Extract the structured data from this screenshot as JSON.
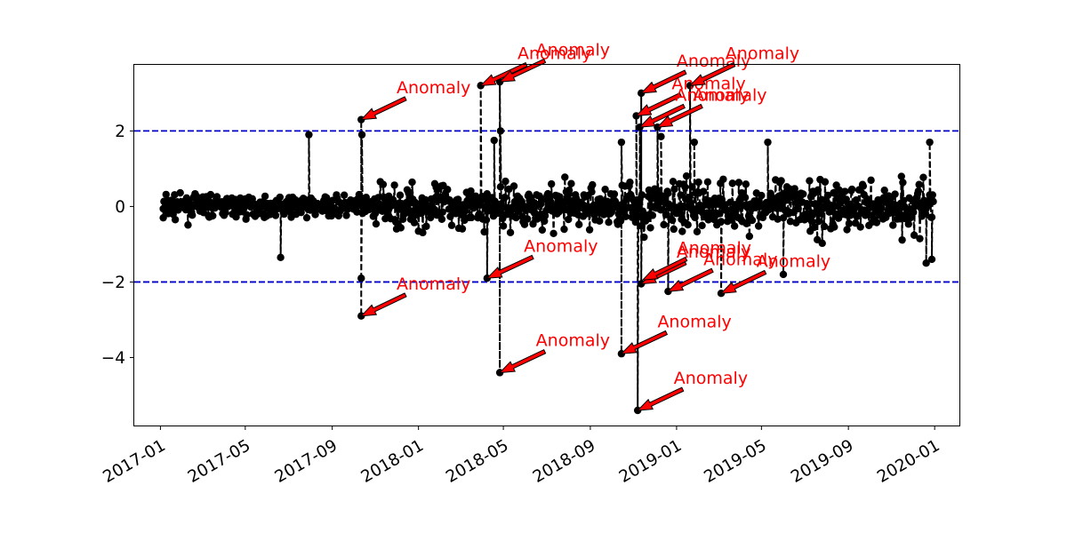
{
  "chart_data": {
    "type": "line",
    "title": "",
    "xlabel": "",
    "ylabel": "",
    "x_axis": {
      "type": "date",
      "range": [
        "2016-11-25",
        "2020-02-05"
      ],
      "tick_dates": [
        "2017-01-01",
        "2017-05-01",
        "2017-09-01",
        "2018-01-01",
        "2018-05-01",
        "2018-09-01",
        "2019-01-01",
        "2019-05-01",
        "2019-09-01",
        "2020-01-01"
      ],
      "tick_labels": [
        "2017-01",
        "2017-05",
        "2017-09",
        "2018-01",
        "2018-05",
        "2018-09",
        "2019-01",
        "2019-05",
        "2019-09",
        "2020-01"
      ],
      "label_rotation_deg": 30
    },
    "y_axis": {
      "range": [
        -5.8,
        3.75
      ],
      "ticks": [
        2,
        0,
        -2,
        -4
      ],
      "tick_labels": [
        "2",
        "0",
        "−2",
        "−4"
      ]
    },
    "grid": false,
    "legend": null,
    "series": [
      {
        "style": "black dashed line with filled circle markers",
        "color": "#000000",
        "note": "daily noise series (about 1090 points between -1.5 and 1.7); only the prominent spikes are listed",
        "points": [
          {
            "x": "2017-01-05",
            "y": -0.3
          },
          {
            "x": "2017-03-01",
            "y": 0.2
          },
          {
            "x": "2017-06-20",
            "y": -1.35
          },
          {
            "x": "2017-07-30",
            "y": 1.9
          },
          {
            "x": "2017-10-12",
            "y": 2.3
          },
          {
            "x": "2017-10-12",
            "y": -2.9
          },
          {
            "x": "2017-10-13",
            "y": 1.9
          },
          {
            "x": "2017-10-12",
            "y": -1.9
          },
          {
            "x": "2018-03-30",
            "y": 3.2
          },
          {
            "x": "2018-04-08",
            "y": -1.9
          },
          {
            "x": "2018-04-26",
            "y": -4.4
          },
          {
            "x": "2018-04-26",
            "y": 3.3
          },
          {
            "x": "2018-04-27",
            "y": 2.0
          },
          {
            "x": "2018-04-18",
            "y": 1.75
          },
          {
            "x": "2018-10-15",
            "y": -3.9
          },
          {
            "x": "2018-10-15",
            "y": 1.7
          },
          {
            "x": "2018-11-05",
            "y": 2.4
          },
          {
            "x": "2018-11-07",
            "y": -5.4
          },
          {
            "x": "2018-11-10",
            "y": 2.1
          },
          {
            "x": "2018-11-12",
            "y": 3.0
          },
          {
            "x": "2018-11-12",
            "y": -2.05
          },
          {
            "x": "2018-12-05",
            "y": 2.1
          },
          {
            "x": "2018-12-10",
            "y": 1.85
          },
          {
            "x": "2018-12-20",
            "y": -2.25
          },
          {
            "x": "2019-01-20",
            "y": 3.2
          },
          {
            "x": "2019-01-26",
            "y": 1.7
          },
          {
            "x": "2019-03-05",
            "y": -2.3
          },
          {
            "x": "2019-05-10",
            "y": 1.7
          },
          {
            "x": "2019-06-01",
            "y": -1.8
          },
          {
            "x": "2019-12-20",
            "y": -1.5
          },
          {
            "x": "2019-12-25",
            "y": 1.7
          },
          {
            "x": "2019-12-28",
            "y": -1.4
          }
        ]
      }
    ],
    "reference_lines": [
      {
        "y": 2,
        "style": "dashed",
        "color": "#0000cc"
      },
      {
        "y": -2,
        "style": "dashed",
        "color": "#0000cc"
      }
    ],
    "annotations": [
      {
        "text": "Anomaly",
        "x": "2017-10-12",
        "y": 2.3,
        "text_x": "2017-12-01",
        "text_y": 3.0
      },
      {
        "text": "Anomaly",
        "x": "2017-10-12",
        "y": -2.9,
        "text_x": "2017-12-01",
        "text_y": -2.2
      },
      {
        "text": "Anomaly",
        "x": "2018-03-30",
        "y": 3.2,
        "text_x": "2018-05-21",
        "text_y": 3.9
      },
      {
        "text": "Anomaly",
        "x": "2018-04-08",
        "y": -1.9,
        "text_x": "2018-05-30",
        "text_y": -1.2
      },
      {
        "text": "Anomaly",
        "x": "2018-04-26",
        "y": -4.4,
        "text_x": "2018-06-16",
        "text_y": -3.7
      },
      {
        "text": "Anomaly",
        "x": "2018-04-26",
        "y": 3.3,
        "text_x": "2018-06-16",
        "text_y": 4.0
      },
      {
        "text": "Anomaly",
        "x": "2018-10-15",
        "y": -3.9,
        "text_x": "2018-12-05",
        "text_y": -3.2
      },
      {
        "text": "Anomaly",
        "x": "2018-11-05",
        "y": 2.4,
        "text_x": "2018-12-25",
        "text_y": 3.1
      },
      {
        "text": "Anomaly",
        "x": "2018-11-07",
        "y": -5.4,
        "text_x": "2018-12-28",
        "text_y": -4.7
      },
      {
        "text": "Anomaly",
        "x": "2018-11-10",
        "y": 2.1,
        "text_x": "2018-12-30",
        "text_y": 2.8
      },
      {
        "text": "Anomaly",
        "x": "2018-11-12",
        "y": 3.0,
        "text_x": "2019-01-01",
        "text_y": 3.7
      },
      {
        "text": "Anomaly",
        "x": "2018-11-12",
        "y": -2.05,
        "text_x": "2019-01-01",
        "text_y": -1.35
      },
      {
        "text": "Anomaly",
        "x": "2018-11-14",
        "y": -1.95,
        "text_x": "2019-01-02",
        "text_y": -1.25
      },
      {
        "text": "Anomaly",
        "x": "2018-12-05",
        "y": 2.1,
        "text_x": "2019-01-24",
        "text_y": 2.8
      },
      {
        "text": "Anomaly",
        "x": "2018-12-20",
        "y": -2.25,
        "text_x": "2019-02-08",
        "text_y": -1.55
      },
      {
        "text": "Anomaly",
        "x": "2019-01-20",
        "y": 3.2,
        "text_x": "2019-03-11",
        "text_y": 3.9
      },
      {
        "text": "Anomaly",
        "x": "2019-03-05",
        "y": -2.3,
        "text_x": "2019-04-24",
        "text_y": -1.6
      }
    ]
  }
}
